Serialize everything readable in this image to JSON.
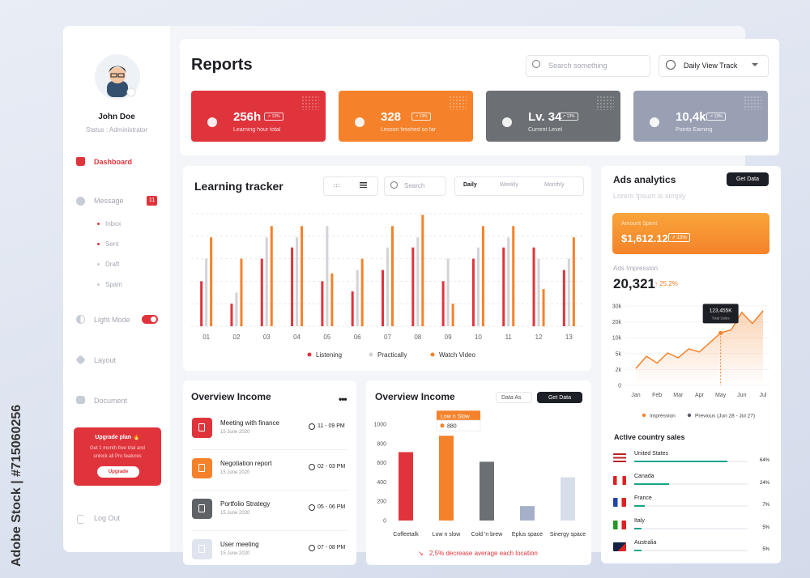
{
  "watermark": "Adobe Stock | #715060256",
  "sidebar": {
    "user_name": "John Doe",
    "status": "Status : Administrator",
    "menu": [
      "Dashboard",
      "Message",
      "Light Mode",
      "Layout",
      "Document",
      "Log Out"
    ],
    "message_badge": "11",
    "submenu": [
      "Inbox",
      "Sent",
      "Draft",
      "Spam"
    ],
    "upgrade": {
      "title": "Upgrade plan 🔥",
      "text": "Get 1 month free trial and unlock all Pro features",
      "button": "Upgrade"
    }
  },
  "header": {
    "title": "Reports",
    "search_placeholder": "Search something",
    "view_select": "Daily View Track"
  },
  "stats": [
    {
      "value": "256h",
      "label": "Learning hour total",
      "change": "13%"
    },
    {
      "value": "328",
      "label": "Lesson finished so far",
      "change": "13%"
    },
    {
      "value": "Lv. 34",
      "label": "Current Level",
      "change": "13%"
    },
    {
      "value": "10,4k",
      "label": "Points Earning",
      "change": "13%"
    }
  ],
  "income_list": {
    "title": "Overview Income",
    "items": [
      {
        "title": "Meeting with finance",
        "date": "15 June 2020",
        "time": "11 - 09 PM"
      },
      {
        "title": "Negotiation report",
        "date": "15 June 2020",
        "time": "02 - 03 PM"
      },
      {
        "title": "Portfolio Strategy",
        "date": "15 June 2020",
        "time": "05 - 06 PM"
      },
      {
        "title": "User meeting",
        "date": "15 June 2020",
        "time": "07 - 08 PM"
      }
    ]
  },
  "ads": {
    "title": "Ads analytics",
    "subtitle": "Lorem Ipsum is simply",
    "button": "Get Data",
    "amount_label": "Amount Spent",
    "amount": "$1,612.12",
    "amount_change": "13%",
    "impression_label": "Ads Impression",
    "impression_value": "20,321",
    "impression_change": "25.2%"
  },
  "countries": {
    "title": "Active country sales",
    "items": [
      {
        "name": "United States",
        "value": 64,
        "value_label": "64%"
      },
      {
        "name": "Canada",
        "value": 24,
        "value_label": "24%"
      },
      {
        "name": "France",
        "value": 7,
        "value_label": "7%"
      },
      {
        "name": "Italy",
        "value": 5,
        "value_label": "5%"
      },
      {
        "name": "Australia",
        "value": 5,
        "value_label": "5%"
      }
    ]
  },
  "chart_data": [
    {
      "type": "bar",
      "title": "Learning tracker",
      "search_placeholder": "Search",
      "tabs": [
        "Daily",
        "Weekly",
        "Monthly"
      ],
      "categories": [
        "01",
        "02",
        "03",
        "04",
        "05",
        "06",
        "07",
        "08",
        "09",
        "10",
        "11",
        "12",
        "13"
      ],
      "series": [
        {
          "name": "Listening",
          "color": "#e0343c",
          "values": [
            40,
            20,
            60,
            70,
            40,
            31,
            50,
            70,
            40,
            60,
            70,
            70,
            50
          ]
        },
        {
          "name": "Practically",
          "color": "#d3d3d8",
          "values": [
            60,
            30,
            79,
            79,
            89,
            50,
            70,
            79,
            60,
            70,
            79,
            60,
            60
          ]
        },
        {
          "name": "Watch Video",
          "color": "#f5822a",
          "values": [
            79,
            60,
            89,
            89,
            47,
            60,
            89,
            99,
            20,
            89,
            89,
            33,
            79
          ]
        }
      ],
      "ylim": [
        0,
        100
      ],
      "yticks": [
        0,
        20,
        40,
        60,
        80,
        100
      ],
      "grid": true
    },
    {
      "type": "bar",
      "title": "Overview Income",
      "menu": "Data As",
      "button": "Get Data",
      "categories": [
        "Coffeetalk",
        "Low n slow",
        "Cold 'n brew",
        "Eplus space",
        "Sinergy space"
      ],
      "values": [
        710,
        880,
        610,
        150,
        450
      ],
      "value_labels": [
        null,
        "880",
        null,
        null,
        null
      ],
      "annotation": "Low n Slow",
      "colors": [
        "#e0343c",
        "#f5822a",
        "#6c6f73",
        "#a6b0c9",
        "#d7deeb"
      ],
      "ylim": [
        0,
        1000
      ],
      "yticks": [
        0,
        200,
        400,
        600,
        800,
        1000
      ],
      "note": "2,5% decrease average each location"
    },
    {
      "type": "line",
      "x": [
        0,
        0.5,
        1,
        1.5,
        2,
        2.5,
        3,
        3.5,
        4,
        4.5,
        5,
        5.5,
        6
      ],
      "series": [
        {
          "name": "Impression",
          "color": "#f5822a",
          "values": [
            2200,
            4500,
            3200,
            5200,
            4200,
            6500,
            5500,
            8500,
            13000,
            15000,
            26000,
            19000,
            27000
          ]
        },
        {
          "name": "Previous (Jun 28 - Jul 27)",
          "color": "#555b66",
          "values": [
            null,
            null,
            null,
            null,
            null,
            null,
            null,
            null,
            null,
            null,
            null,
            null,
            null
          ]
        }
      ],
      "xlim": [
        0,
        6
      ],
      "xticks": [
        {
          "value": 0,
          "label": "Jan"
        },
        {
          "value": 1,
          "label": "Feb"
        },
        {
          "value": 2,
          "label": "Mar"
        },
        {
          "value": 3,
          "label": "Apr"
        },
        {
          "value": 4,
          "label": "May"
        },
        {
          "value": 5,
          "label": "Jun"
        },
        {
          "value": 6,
          "label": "Jul"
        }
      ],
      "ylim": [
        0,
        30000
      ],
      "yticks": [
        {
          "value": 0,
          "label": "0"
        },
        {
          "value": 2000,
          "label": "2k"
        },
        {
          "value": 5000,
          "label": "5k"
        },
        {
          "value": 10000,
          "label": "10k"
        },
        {
          "value": 20000,
          "label": "20k"
        },
        {
          "value": 30000,
          "label": "30k"
        }
      ],
      "yscale": "tick-spaced",
      "annotation": {
        "x": 4,
        "title": "123,455K",
        "subtitle": "Total Sales"
      }
    }
  ]
}
